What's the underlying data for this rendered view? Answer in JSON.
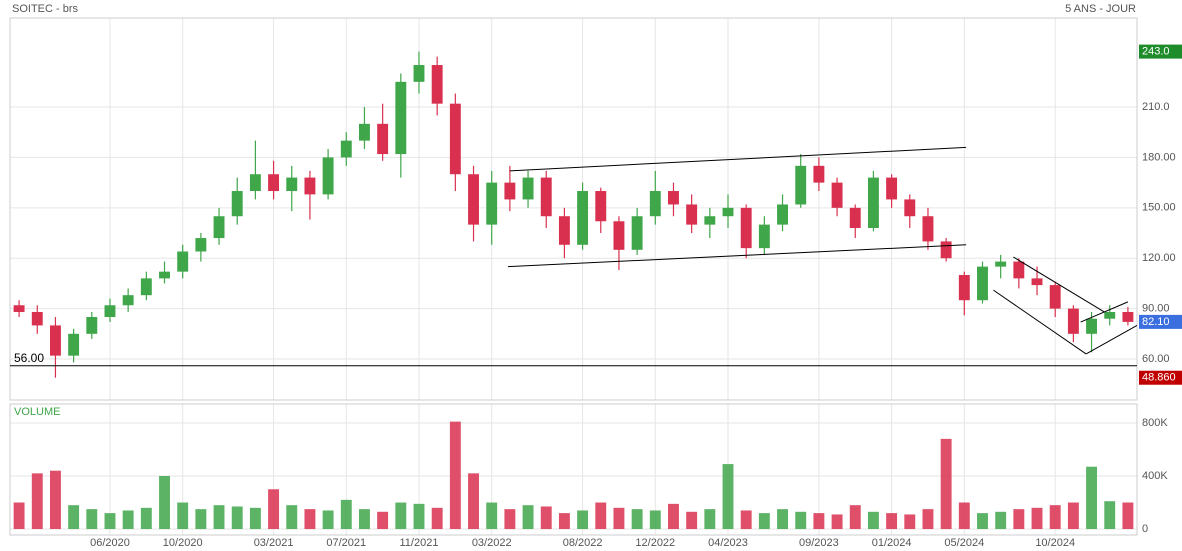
{
  "chart_data": [
    {
      "type": "candlestick",
      "title": "SOITEC - brs",
      "subtitle": "5 ANS - JOUR",
      "categories": [
        null,
        null,
        null,
        null,
        null,
        "06/2020",
        null,
        null,
        null,
        "10/2020",
        null,
        null,
        null,
        null,
        "03/2021",
        null,
        null,
        null,
        "07/2021",
        null,
        null,
        null,
        "11/2021",
        null,
        null,
        null,
        "03/2022",
        null,
        null,
        null,
        null,
        "08/2022",
        null,
        null,
        null,
        "12/2022",
        null,
        null,
        null,
        "04/2023",
        null,
        null,
        null,
        null,
        "09/2023",
        null,
        null,
        null,
        "01/2024",
        null,
        null,
        null,
        "05/2024",
        null,
        null,
        null,
        null,
        "10/2024",
        null,
        null,
        null,
        null
      ],
      "open": [
        92,
        88,
        80,
        62,
        75,
        85,
        92,
        98,
        108,
        112,
        124,
        132,
        145,
        160,
        170,
        160,
        168,
        158,
        180,
        190,
        200,
        182,
        225,
        235,
        212,
        170,
        140,
        165,
        155,
        168,
        145,
        128,
        160,
        142,
        125,
        145,
        160,
        152,
        140,
        145,
        150,
        126,
        140,
        152,
        175,
        165,
        150,
        138,
        168,
        155,
        145,
        130,
        110,
        95,
        115,
        118,
        108,
        104,
        90,
        75,
        84,
        88
      ],
      "high": [
        95,
        92,
        85,
        78,
        88,
        96,
        102,
        112,
        118,
        128,
        135,
        150,
        168,
        190,
        178,
        175,
        172,
        185,
        195,
        210,
        212,
        230,
        243,
        240,
        218,
        175,
        172,
        175,
        172,
        172,
        150,
        165,
        162,
        145,
        150,
        172,
        165,
        158,
        150,
        158,
        152,
        145,
        158,
        182,
        180,
        168,
        152,
        172,
        170,
        158,
        150,
        132,
        112,
        118,
        122,
        120,
        115,
        106,
        92,
        88,
        92,
        91
      ],
      "low": [
        85,
        75,
        48.86,
        58,
        72,
        82,
        88,
        95,
        105,
        108,
        118,
        128,
        140,
        155,
        155,
        148,
        143,
        155,
        175,
        185,
        178,
        168,
        218,
        205,
        160,
        130,
        128,
        148,
        150,
        138,
        120,
        125,
        135,
        113,
        122,
        140,
        145,
        135,
        132,
        138,
        120,
        122,
        136,
        150,
        160,
        145,
        132,
        136,
        150,
        138,
        125,
        118,
        86,
        93,
        108,
        102,
        98,
        85,
        70,
        64,
        80,
        80
      ],
      "close": [
        88,
        80,
        62,
        75,
        85,
        92,
        98,
        108,
        112,
        124,
        132,
        145,
        160,
        170,
        160,
        168,
        158,
        180,
        190,
        200,
        182,
        225,
        235,
        212,
        170,
        140,
        165,
        155,
        168,
        145,
        128,
        160,
        142,
        125,
        145,
        160,
        152,
        140,
        145,
        150,
        126,
        140,
        152,
        175,
        165,
        150,
        138,
        168,
        155,
        145,
        130,
        120,
        95,
        115,
        118,
        108,
        104,
        90,
        75,
        84,
        88,
        82.1
      ],
      "up_color": "#3fa64a",
      "down_color": "#d9304f",
      "ylim": [
        35.6,
        263
      ],
      "yticks": [
        {
          "value": 60,
          "label": "60.00"
        },
        {
          "value": 90,
          "label": "90.00"
        },
        {
          "value": 120,
          "label": "120.00"
        },
        {
          "value": 150,
          "label": "150.00"
        },
        {
          "value": 180,
          "label": "180.00"
        },
        {
          "value": 210,
          "label": "210.0"
        }
      ],
      "grid": true,
      "hlines": [
        {
          "value": 56,
          "label": "56.00",
          "color": "#000000"
        }
      ],
      "price_tags": [
        {
          "value": 243,
          "label": "243.0",
          "color": "#1e8c2a"
        },
        {
          "value": 82.1,
          "label": "82.10",
          "color": "#3b6fe0"
        },
        {
          "value": 48.86,
          "label": "48.860",
          "color": "#c00000"
        }
      ],
      "trendlines": [
        {
          "x": [
            27.0,
            52.1
          ],
          "y": [
            172,
            186
          ]
        },
        {
          "x": [
            26.9,
            52.1
          ],
          "y": [
            115,
            128
          ]
        },
        {
          "x": [
            54.7,
            59.7
          ],
          "y": [
            120.7,
            88
          ]
        },
        {
          "x": [
            53.6,
            58.7
          ],
          "y": [
            101,
            63
          ]
        },
        {
          "x": [
            58.4,
            61.0
          ],
          "y": [
            82,
            94
          ]
        },
        {
          "x": [
            58.7,
            61.5
          ],
          "y": [
            63,
            80
          ]
        }
      ]
    },
    {
      "type": "bar",
      "title": "VOLUME",
      "values": [
        200000,
        420000,
        440000,
        180000,
        150000,
        120000,
        140000,
        160000,
        400000,
        200000,
        150000,
        180000,
        170000,
        160000,
        300000,
        180000,
        150000,
        140000,
        220000,
        150000,
        130000,
        200000,
        190000,
        160000,
        810000,
        420000,
        200000,
        150000,
        180000,
        170000,
        120000,
        140000,
        200000,
        160000,
        150000,
        140000,
        190000,
        130000,
        150000,
        490000,
        140000,
        120000,
        150000,
        130000,
        120000,
        110000,
        180000,
        130000,
        120000,
        110000,
        150000,
        680000,
        200000,
        120000,
        130000,
        150000,
        160000,
        180000,
        200000,
        470000,
        210000,
        200000
      ],
      "ylim": [
        -45000,
        943000
      ],
      "yticks": [
        0,
        {
          "value": 400000,
          "label": "400K"
        },
        {
          "value": 800000,
          "label": "800K"
        }
      ],
      "grid": true
    }
  ]
}
